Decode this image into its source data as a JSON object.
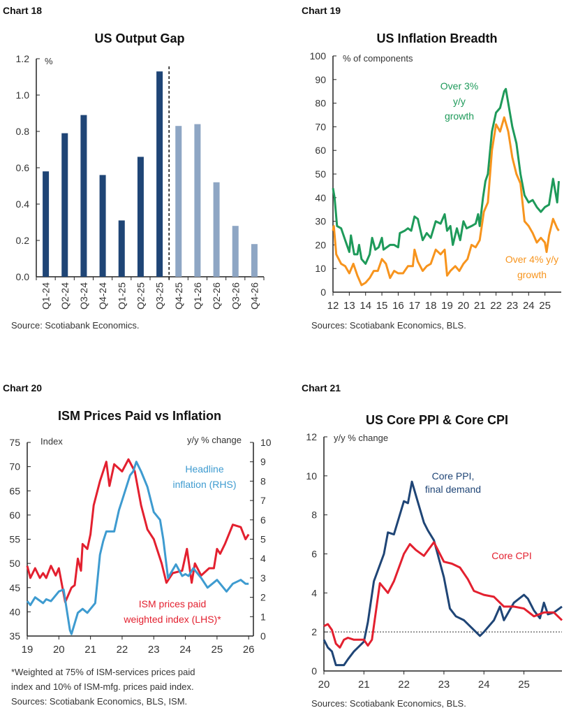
{
  "chart_data": [
    {
      "number": "Chart 18",
      "type": "bar",
      "title": "US Output Gap",
      "ylabel": "%",
      "ylim": [
        0,
        1.2
      ],
      "yticks": [
        "0.0",
        "0.2",
        "0.4",
        "0.6",
        "0.8",
        "1.0",
        "1.2"
      ],
      "categories": [
        "Q1-24",
        "Q2-24",
        "Q3-24",
        "Q4-24",
        "Q1-25",
        "Q2-25",
        "Q3-25",
        "Q4-25",
        "Q1-26",
        "Q2-26",
        "Q3-26",
        "Q4-26"
      ],
      "values": [
        0.58,
        0.79,
        0.89,
        0.56,
        0.31,
        0.66,
        1.13,
        0.83,
        0.84,
        0.52,
        0.28,
        0.18
      ],
      "forecast_from_index": 7,
      "colors": {
        "actual": "#1f4576",
        "forecast": "#8ea6c4"
      },
      "source": "Source: Scotiabank Economics."
    },
    {
      "number": "Chart 19",
      "type": "line",
      "title": "US Inflation Breadth",
      "ylabel": "% of components",
      "ylim": [
        0,
        100
      ],
      "xlim": [
        12,
        26
      ],
      "yticks": [
        "0",
        "10",
        "20",
        "30",
        "40",
        "50",
        "60",
        "70",
        "80",
        "90",
        "100"
      ],
      "xticks": [
        "12",
        "13",
        "14",
        "15",
        "16",
        "17",
        "18",
        "19",
        "20",
        "21",
        "22",
        "23",
        "24",
        "25"
      ],
      "series": [
        {
          "name": "Over 3% y/y growth",
          "color": "#1e9a5a",
          "x": [
            12,
            12.1,
            12.25,
            12.5,
            12.75,
            13,
            13.1,
            13.3,
            13.5,
            13.6,
            13.75,
            14,
            14.25,
            14.4,
            14.6,
            14.8,
            15,
            15.1,
            15.5,
            15.75,
            16,
            16.1,
            16.4,
            16.6,
            16.8,
            17,
            17.2,
            17.5,
            17.75,
            18,
            18.3,
            18.6,
            18.85,
            19,
            19.2,
            19.35,
            19.6,
            19.8,
            20,
            20.2,
            20.5,
            20.75,
            20.9,
            21,
            21.2,
            21.35,
            21.5,
            21.75,
            22,
            22.25,
            22.5,
            22.6,
            22.75,
            23,
            23.25,
            23.5,
            23.75,
            24,
            24.25,
            24.5,
            24.75,
            25,
            25.25,
            25.5,
            25.75,
            25.85
          ],
          "y": [
            44,
            40,
            28,
            27,
            22,
            17,
            24,
            16,
            16,
            20,
            14,
            12,
            16,
            23,
            18,
            19,
            23,
            18,
            20,
            20,
            19,
            25,
            26,
            27,
            26,
            32,
            31,
            22,
            25,
            23,
            30,
            29,
            33,
            26,
            28,
            20,
            27,
            22,
            30,
            27,
            28,
            29,
            33,
            28,
            40,
            47,
            50,
            68,
            76,
            78,
            85,
            86,
            80,
            70,
            63,
            50,
            41,
            38,
            39,
            36,
            34,
            36,
            37,
            48,
            38,
            47
          ]
        },
        {
          "name": "Over 4% y/y growth",
          "color": "#f7941d",
          "x": [
            12,
            12.05,
            12.2,
            12.5,
            12.75,
            13,
            13.25,
            13.5,
            13.75,
            14,
            14.25,
            14.5,
            14.75,
            15,
            15.25,
            15.5,
            15.75,
            16,
            16.3,
            16.6,
            16.9,
            17,
            17.2,
            17.5,
            17.75,
            18,
            18.3,
            18.6,
            18.85,
            19,
            19.2,
            19.5,
            19.75,
            20,
            20.25,
            20.5,
            20.75,
            21,
            21.25,
            21.5,
            21.75,
            22,
            22.25,
            22.5,
            22.75,
            23,
            23.25,
            23.5,
            23.75,
            24,
            24.25,
            24.5,
            24.75,
            25,
            25.1,
            25.25,
            25.5,
            25.75,
            25.85
          ],
          "y": [
            26,
            28,
            16,
            12,
            11,
            8,
            12,
            7,
            3,
            4,
            6,
            9,
            9,
            14,
            12,
            6,
            9,
            8,
            8,
            11,
            11,
            18,
            13,
            9,
            11,
            12,
            18,
            16,
            18,
            7,
            9,
            11,
            9,
            12,
            14,
            20,
            19,
            22,
            34,
            38,
            60,
            71,
            68,
            74,
            68,
            57,
            50,
            46,
            30,
            28,
            25,
            21,
            23,
            21,
            17,
            24,
            31,
            27,
            26
          ]
        }
      ],
      "annotations": [
        "Over 3%",
        "y/y",
        "growth",
        "Over 4% y/y",
        "growth"
      ],
      "source": "Sources: Scotiabank Economics, BLS."
    },
    {
      "number": "Chart 20",
      "type": "line",
      "title": "ISM Prices Paid vs Inflation",
      "ylabel_left": "Index",
      "ylabel_right": "y/y % change",
      "ylim_left": [
        35,
        75
      ],
      "ylim_right": [
        0,
        10
      ],
      "xlim": [
        19,
        26.15
      ],
      "yticks_left": [
        "35",
        "40",
        "45",
        "50",
        "55",
        "60",
        "65",
        "70",
        "75"
      ],
      "yticks_right": [
        "0",
        "1",
        "2",
        "3",
        "4",
        "5",
        "6",
        "7",
        "8",
        "9",
        "10"
      ],
      "xticks": [
        "19",
        "20",
        "21",
        "22",
        "23",
        "24",
        "25",
        "26"
      ],
      "series": [
        {
          "name": "ISM prices paid weighted index (LHS)*",
          "axis": "left",
          "color": "#e3202f",
          "x": [
            19,
            19.1,
            19.25,
            19.4,
            19.5,
            19.6,
            19.75,
            19.9,
            20,
            20.2,
            20.4,
            20.5,
            20.6,
            20.7,
            20.75,
            20.9,
            21,
            21.1,
            21.3,
            21.5,
            21.6,
            21.75,
            22,
            22.2,
            22.4,
            22.6,
            22.8,
            23,
            23.25,
            23.4,
            23.6,
            23.9,
            24.05,
            24.2,
            24.3,
            24.5,
            24.75,
            24.9,
            25,
            25.1,
            25.25,
            25.5,
            25.75,
            25.9,
            26
          ],
          "y": [
            49.5,
            47,
            49,
            47,
            48,
            47,
            49.5,
            47.5,
            49,
            42,
            45,
            45.5,
            51,
            48.5,
            54,
            53,
            56,
            62,
            67,
            71,
            66,
            70.5,
            69,
            71.5,
            69,
            62,
            57,
            55,
            50,
            46,
            48,
            48.5,
            53,
            46,
            50,
            47.5,
            49,
            49,
            53,
            52,
            54,
            58,
            57.5,
            55,
            56
          ]
        },
        {
          "name": "Headline inflation (RHS)",
          "axis": "right",
          "color": "#3e9bd0",
          "x": [
            19,
            19.1,
            19.25,
            19.5,
            19.6,
            19.75,
            19.9,
            20,
            20.15,
            20.35,
            20.4,
            20.6,
            20.75,
            20.9,
            21,
            21.15,
            21.3,
            21.4,
            21.5,
            21.75,
            21.9,
            22,
            22.25,
            22.35,
            22.45,
            22.6,
            22.8,
            23,
            23.2,
            23.3,
            23.45,
            23.7,
            23.9,
            24,
            24.1,
            24.25,
            24.5,
            24.7,
            25,
            25.3,
            25.5,
            25.75,
            25.9,
            26
          ],
          "y": [
            1.8,
            1.6,
            2.0,
            1.7,
            1.9,
            1.8,
            2.1,
            2.3,
            2.4,
            0.3,
            0.1,
            1.2,
            1.4,
            1.2,
            1.4,
            1.7,
            4.2,
            4.9,
            5.4,
            5.4,
            6.5,
            7.0,
            8.3,
            8.5,
            9.0,
            8.5,
            7.7,
            6.4,
            6.0,
            5.0,
            3.0,
            3.7,
            3.1,
            3.2,
            3.1,
            3.5,
            3.0,
            2.5,
            2.9,
            2.3,
            2.7,
            2.9,
            2.7,
            2.7
          ]
        }
      ],
      "annotations": [
        "Headline",
        "inflation (RHS)",
        "ISM prices paid",
        "weighted index (LHS)*"
      ],
      "footnote": [
        "*Weighted at 75% of ISM-services prices paid",
        "index and 10% of ISM-mfg. prices paid index.",
        "Sources: Scotiabank Economics, BLS, ISM."
      ]
    },
    {
      "number": "Chart 21",
      "type": "line",
      "title": "US Core PPI & Core CPI",
      "ylabel": "y/y % change",
      "ylim": [
        0,
        12
      ],
      "xlim": [
        20,
        25.95
      ],
      "yticks": [
        "0",
        "2",
        "4",
        "6",
        "8",
        "10",
        "12"
      ],
      "xticks": [
        "20",
        "21",
        "22",
        "23",
        "24",
        "25"
      ],
      "reference_line": 2,
      "series": [
        {
          "name": "Core PPI, final demand",
          "color": "#1f4576",
          "x": [
            20,
            20.1,
            20.2,
            20.3,
            20.5,
            20.6,
            20.75,
            21,
            21.1,
            21.25,
            21.5,
            21.6,
            21.75,
            22,
            22.1,
            22.2,
            22.3,
            22.5,
            22.6,
            22.75,
            23,
            23.15,
            23.3,
            23.5,
            23.75,
            23.9,
            24,
            24.25,
            24.4,
            24.5,
            24.75,
            25,
            25.1,
            25.25,
            25.4,
            25.5,
            25.6,
            25.75,
            25.95
          ],
          "y": [
            1.6,
            1.2,
            1.0,
            0.3,
            0.3,
            0.6,
            1.0,
            1.5,
            2.5,
            4.6,
            6.0,
            7.1,
            7.0,
            8.7,
            8.6,
            9.7,
            9.0,
            7.6,
            7.2,
            6.7,
            4.8,
            3.2,
            2.8,
            2.6,
            2.1,
            1.8,
            2.0,
            2.6,
            3.3,
            2.6,
            3.5,
            3.9,
            3.7,
            3.1,
            2.7,
            3.5,
            2.9,
            3.0,
            3.3
          ]
        },
        {
          "name": "Core CPI",
          "color": "#e3202f",
          "x": [
            20,
            20.1,
            20.2,
            20.3,
            20.4,
            20.5,
            20.6,
            20.75,
            21,
            21.1,
            21.2,
            21.4,
            21.6,
            21.75,
            22,
            22.15,
            22.3,
            22.5,
            22.75,
            23,
            23.2,
            23.4,
            23.6,
            23.75,
            24,
            24.25,
            24.5,
            24.75,
            25,
            25.25,
            25.5,
            25.75,
            25.95
          ],
          "y": [
            2.3,
            2.4,
            2.1,
            1.4,
            1.2,
            1.6,
            1.7,
            1.6,
            1.6,
            1.3,
            1.6,
            4.5,
            4.0,
            4.6,
            6.0,
            6.5,
            6.2,
            5.9,
            6.6,
            5.6,
            5.5,
            5.3,
            4.7,
            4.1,
            3.9,
            3.8,
            3.3,
            3.3,
            3.2,
            2.8,
            3.0,
            3.0,
            2.6
          ]
        }
      ],
      "annotations": [
        "Core PPI,",
        "final demand",
        "Core CPI"
      ],
      "source": "Sources: Scotiabank Economics, BLS."
    }
  ]
}
